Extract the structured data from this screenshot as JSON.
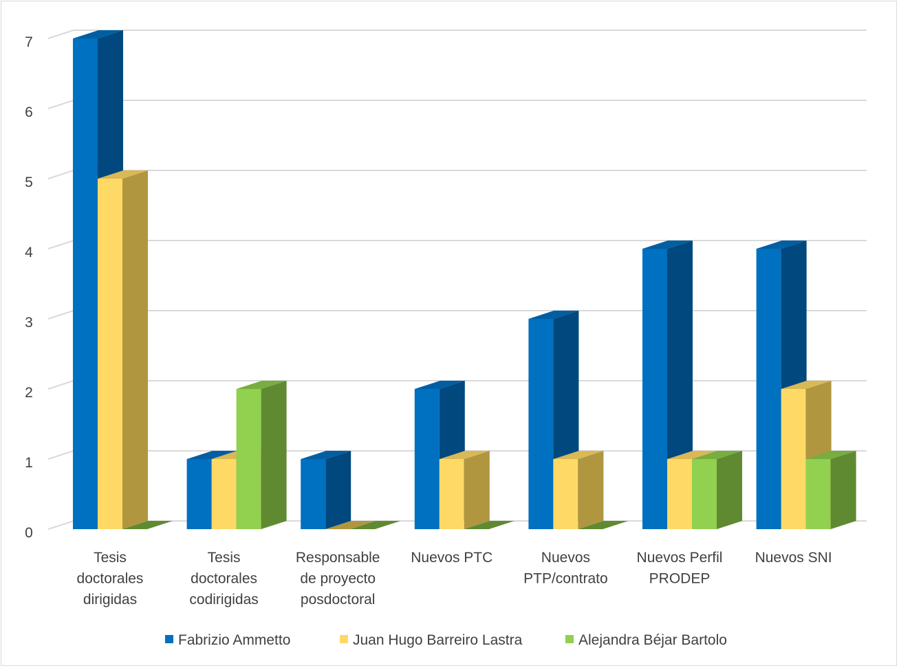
{
  "chart_data": {
    "type": "bar",
    "style": "3d-clustered-column",
    "title": "",
    "xlabel": "",
    "ylabel": "",
    "ylim": [
      0,
      7
    ],
    "yticks": [
      "0",
      "1",
      "2",
      "3",
      "4",
      "5",
      "6",
      "7"
    ],
    "grid": true,
    "legend_position": "bottom",
    "categories": [
      [
        "Tesis",
        "doctorales",
        "dirigidas"
      ],
      [
        "Tesis",
        "doctorales",
        "codirigidas"
      ],
      [
        "Responsable",
        "de proyecto",
        "posdoctoral"
      ],
      [
        "Nuevos PTC"
      ],
      [
        "Nuevos",
        "PTP/contrato"
      ],
      [
        "Nuevos Perfil",
        "PRODEP"
      ],
      [
        "Nuevos SNI"
      ]
    ],
    "series": [
      {
        "name": "Fabrizio Ammetto",
        "color": "#0070c0",
        "side": "#00487d",
        "top": "#005ea3",
        "values": [
          7,
          1,
          1,
          2,
          3,
          4,
          4
        ]
      },
      {
        "name": "Juan Hugo Barreiro Lastra",
        "color": "#ffd966",
        "side": "#b0963f",
        "top": "#d9b855",
        "values": [
          5,
          1,
          0,
          1,
          1,
          1,
          2
        ]
      },
      {
        "name": "Alejandra Béjar Bartolo",
        "color": "#92d050",
        "side": "#5f8a31",
        "top": "#78ad40",
        "values": [
          0,
          2,
          0,
          0,
          0,
          1,
          1
        ]
      }
    ]
  }
}
